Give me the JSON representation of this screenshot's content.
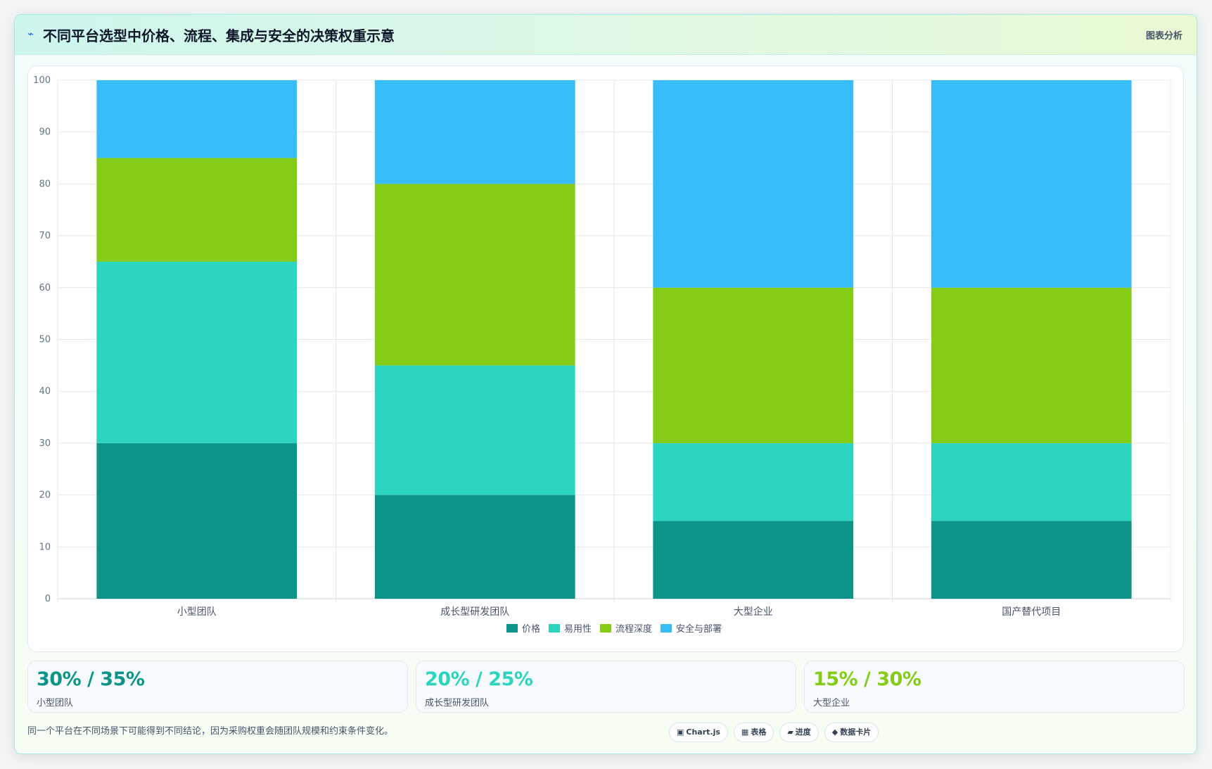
{
  "header": {
    "icon": "lightning-icon",
    "icon_glyph": "⌁",
    "title": "不同平台选型中价格、流程、集成与安全的决策权重示意",
    "tag": "图表分析"
  },
  "chart_data": {
    "type": "bar",
    "stacked": true,
    "title": "",
    "xlabel": "",
    "ylabel": "",
    "ylim": [
      0,
      100
    ],
    "yticks": [
      0,
      10,
      20,
      30,
      40,
      50,
      60,
      70,
      80,
      90,
      100
    ],
    "grid": true,
    "legend_position": "bottom",
    "categories": [
      "小型团队",
      "成长型研发团队",
      "大型企业",
      "国产替代项目"
    ],
    "series": [
      {
        "name": "价格",
        "color": "#0d9488",
        "values": [
          30,
          20,
          15,
          15
        ]
      },
      {
        "name": "易用性",
        "color": "#2dd4bf",
        "values": [
          35,
          25,
          15,
          15
        ]
      },
      {
        "name": "流程深度",
        "color": "#84cc16",
        "values": [
          20,
          35,
          30,
          30
        ]
      },
      {
        "name": "安全与部署",
        "color": "#38bdf8",
        "values": [
          15,
          20,
          40,
          40
        ]
      }
    ]
  },
  "stats": [
    {
      "value": "30% / 35%",
      "label": "小型团队",
      "color": "#0d9488"
    },
    {
      "value": "20% / 25%",
      "label": "成长型研发团队",
      "color": "#2dd4bf"
    },
    {
      "value": "15% / 30%",
      "label": "大型企业",
      "color": "#84cc16"
    }
  ],
  "footer": {
    "note": "同一个平台在不同场景下可能得到不同结论，因为采购权重会随团队规模和约束条件变化。",
    "chips": [
      {
        "icon": "chart-icon",
        "glyph": "▣",
        "label": "Chart.js"
      },
      {
        "icon": "table-icon",
        "glyph": "▦",
        "label": "表格"
      },
      {
        "icon": "progress-icon",
        "glyph": "▰",
        "label": "进度"
      },
      {
        "icon": "diamond-icon",
        "glyph": "◆",
        "label": "数据卡片"
      }
    ]
  }
}
